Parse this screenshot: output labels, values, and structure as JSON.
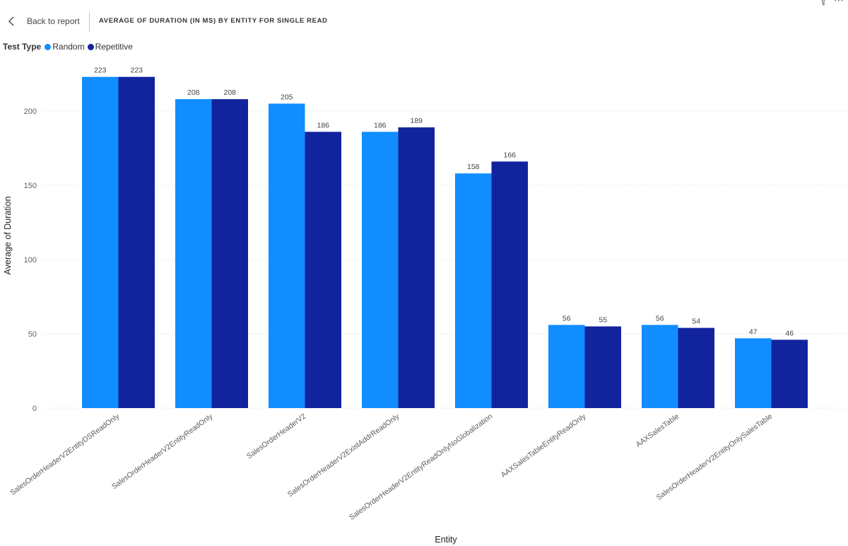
{
  "header": {
    "back_label": "Back to report",
    "title": "AVERAGE OF DURATION (IN MS) BY ENTITY FOR SINGLE READ"
  },
  "legend": {
    "title": "Test Type",
    "items": [
      {
        "label": "Random",
        "color": "#118DFF"
      },
      {
        "label": "Repetitive",
        "color": "#12239E"
      }
    ]
  },
  "chart_data": {
    "type": "bar",
    "xlabel": "Entity",
    "ylabel": "Average of Duration",
    "ylim": [
      0,
      230
    ],
    "yticks": [
      0,
      50,
      100,
      150,
      200
    ],
    "grid": true,
    "legend_position": "top-left",
    "categories": [
      "SalesOrderHeaderV2EntityDSReadOnly",
      "SalesOrderHeaderV2EntityReadOnly",
      "SalesOrderHeaderV2",
      "SalesOrderHeaderV2ExistAddrReadOnly",
      "SalesOrderHeaderV2EntityReadOnlyNoGlobalization",
      "AAXSalesTableEntityReadOnly",
      "AAXSalesTable",
      "SalesOrderHeaderV2EntityOnlySalesTable"
    ],
    "series": [
      {
        "name": "Random",
        "color": "#118DFF",
        "values": [
          223,
          208,
          205,
          186,
          158,
          56,
          56,
          47
        ]
      },
      {
        "name": "Repetitive",
        "color": "#12239E",
        "values": [
          223,
          208,
          186,
          189,
          166,
          55,
          54,
          46
        ]
      }
    ]
  }
}
